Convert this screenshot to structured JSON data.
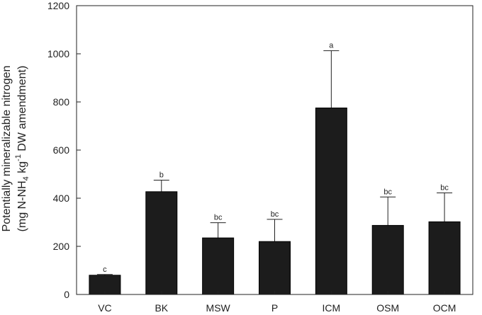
{
  "chart_data": {
    "type": "bar",
    "categories": [
      "VC",
      "BK",
      "MSW",
      "P",
      "ICM",
      "OSM",
      "OCM"
    ],
    "values": [
      80,
      427,
      235,
      220,
      775,
      287,
      302
    ],
    "error_upper": [
      83,
      475,
      298,
      312,
      1013,
      405,
      422
    ],
    "significance_letters": [
      "c",
      "b",
      "bc",
      "bc",
      "a",
      "bc",
      "bc"
    ],
    "ylabel_line1": "Potentially mineralizable nitrogen",
    "ylabel_line2": {
      "open": "(mg N-NH",
      "sub": "4",
      "mid": " kg",
      "sup": "-1",
      "close": " DW amendment)"
    },
    "ylim": [
      0,
      1200
    ],
    "yticks": [
      "0",
      "200",
      "400",
      "600",
      "800",
      "1000",
      "1200"
    ],
    "grid": false,
    "bar_color": "#1c1c1c"
  }
}
